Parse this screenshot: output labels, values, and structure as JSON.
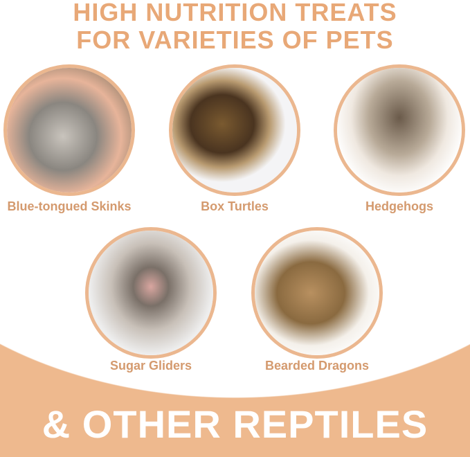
{
  "header": {
    "line1": "HIGH NUTRITION TREATS",
    "line2": "FOR VARIETIES OF PETS"
  },
  "animals": [
    {
      "label": "Blue-tongued Skinks",
      "icon": "skink-photo"
    },
    {
      "label": "Box Turtles",
      "icon": "turtle-photo"
    },
    {
      "label": "Hedgehogs",
      "icon": "hedgehog-photo"
    },
    {
      "label": "Sugar Gliders",
      "icon": "sugar-glider-photo"
    },
    {
      "label": "Bearded Dragons",
      "icon": "bearded-dragon-photo"
    }
  ],
  "footer": {
    "text": "& OTHER REPTILES"
  },
  "colors": {
    "accent": "#EEB98E",
    "title": "#E8A877",
    "label": "#D49A6E"
  }
}
